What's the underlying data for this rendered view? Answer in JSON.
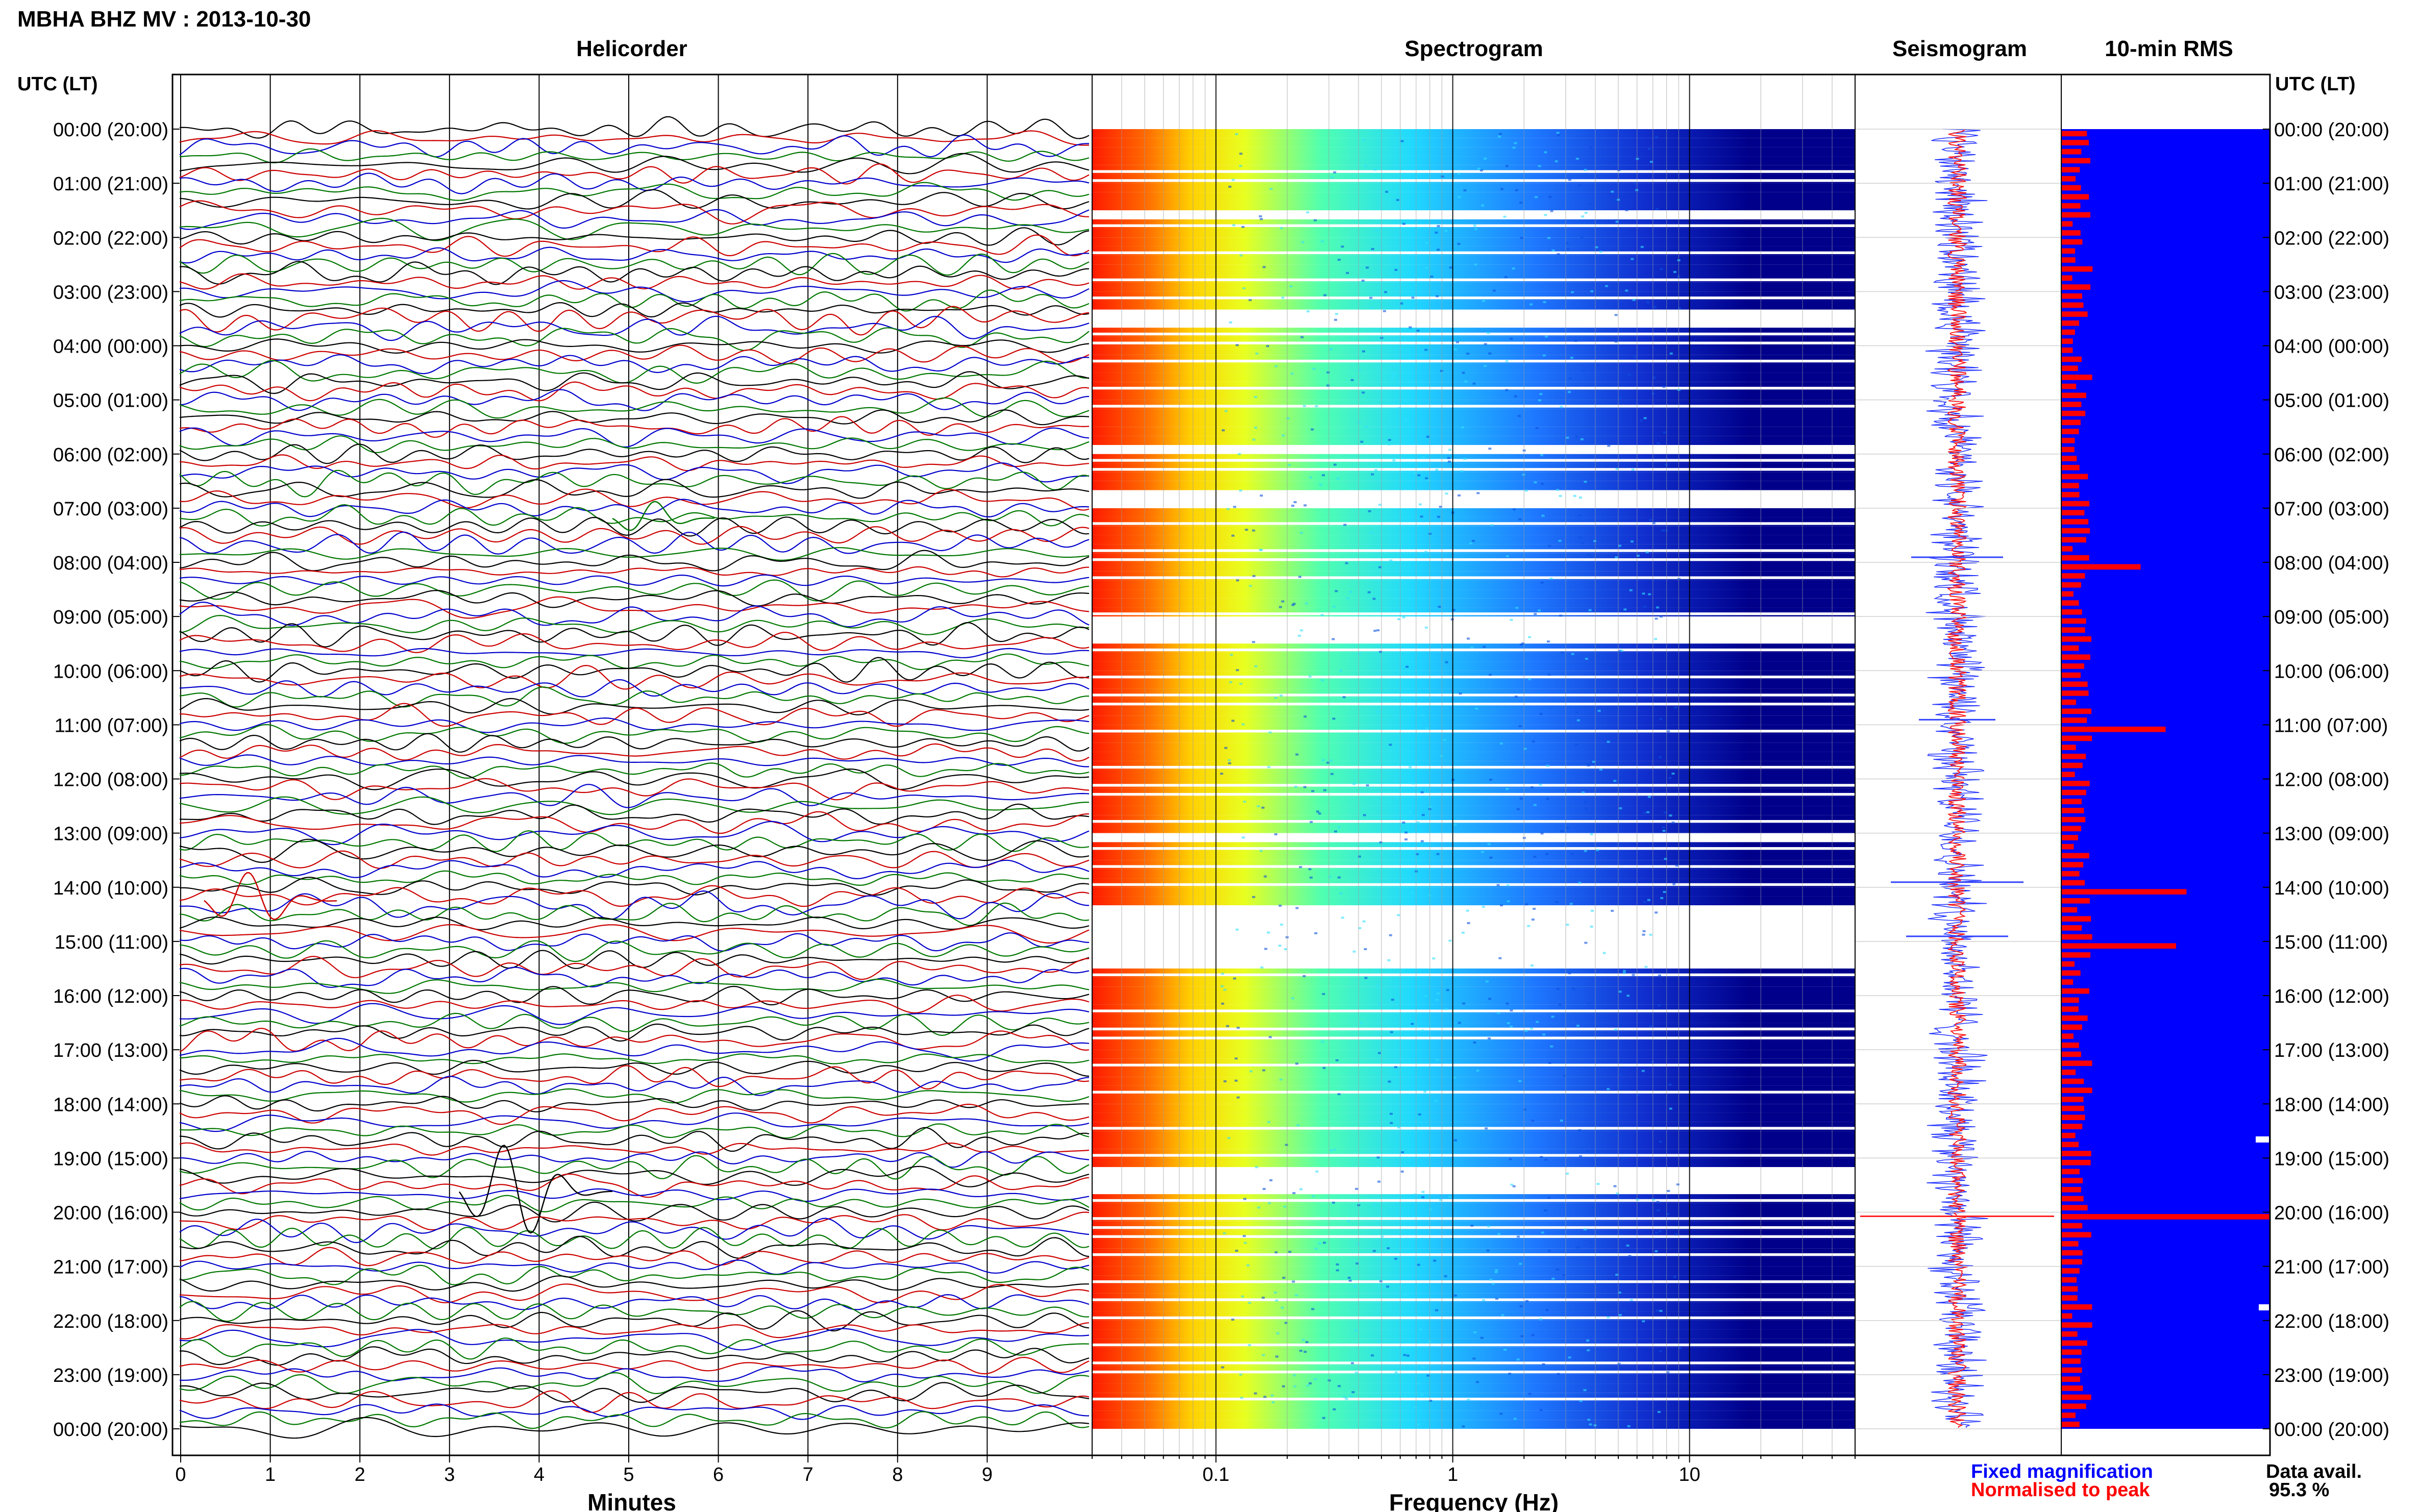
{
  "page_title": "MBHA BHZ MV : 2013-10-30",
  "panels": {
    "helicorder": "Helicorder",
    "spectrogram": "Spectrogram",
    "seismogram": "Seismogram",
    "rms": "10-min RMS"
  },
  "axis_labels": {
    "time_left": "UTC (LT)",
    "time_right": "UTC (LT)",
    "helicorder_x": "Minutes",
    "spectrogram_x": "Frequency (Hz)"
  },
  "legend": {
    "fixed": "Fixed magnification",
    "normalised": "Normalised to peak",
    "fixed_color": "#0000ff",
    "normalised_color": "#ff0000"
  },
  "data_availability": {
    "label": "Data avail.",
    "value": "95.3 %"
  },
  "colors": {
    "trace_cycle": [
      "#000000",
      "#cc0000",
      "#0000cc",
      "#007700"
    ],
    "spectro_background": "#00008b",
    "rms_background": "#0000ff",
    "rms_bar": "#ff0000"
  },
  "chart_data": [
    {
      "type": "line",
      "name": "helicorder",
      "title": "Helicorder",
      "xlabel": "Minutes",
      "x_ticks": [
        0,
        1,
        2,
        3,
        4,
        5,
        6,
        7,
        8,
        9
      ],
      "xlim": [
        0,
        10
      ],
      "line_count": 144,
      "line_duration_min": 10,
      "y_ticks": [
        "00:00 (20:00)",
        "01:00 (21:00)",
        "02:00 (22:00)",
        "03:00 (23:00)",
        "04:00 (00:00)",
        "05:00 (01:00)",
        "06:00 (02:00)",
        "07:00 (03:00)",
        "08:00 (04:00)",
        "09:00 (05:00)",
        "10:00 (06:00)",
        "11:00 (07:00)",
        "12:00 (08:00)",
        "13:00 (09:00)",
        "14:00 (10:00)",
        "15:00 (11:00)",
        "16:00 (12:00)",
        "17:00 (13:00)",
        "18:00 (14:00)",
        "19:00 (15:00)",
        "20:00 (16:00)",
        "21:00 (17:00)",
        "22:00 (18:00)",
        "23:00 (19:00)",
        "00:00 (20:00)"
      ]
    },
    {
      "type": "heatmap",
      "name": "spectrogram",
      "title": "Spectrogram",
      "xlabel": "Frequency (Hz)",
      "x_scale": "log",
      "xlim": [
        0.03,
        50
      ],
      "x_ticks": [
        "0.1",
        "1",
        "10"
      ]
    },
    {
      "type": "bar",
      "name": "10-min RMS",
      "title": "10-min RMS",
      "orientation": "horizontal",
      "rows": 144,
      "peaks": [
        {
          "time": "08:00",
          "relative": 0.38
        },
        {
          "time": "11:00",
          "relative": 0.5
        },
        {
          "time": "14:00",
          "relative": 0.6
        },
        {
          "time": "15:00",
          "relative": 0.55
        },
        {
          "time": "20:00",
          "relative": 1.0
        }
      ]
    }
  ]
}
